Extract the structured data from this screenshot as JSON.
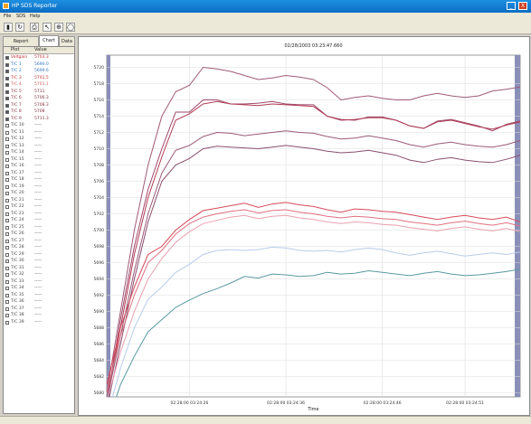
{
  "window": {
    "title": "HP SDS Reporter",
    "min_glyph": "_",
    "close_glyph": "X"
  },
  "menu": [
    "File",
    "SDS",
    "Help"
  ],
  "toolbar": [
    "save-icon",
    "refresh-icon",
    "print-icon",
    "pointer-icon",
    "zoom-in-icon",
    "zoom-reset-icon"
  ],
  "toolbar_glyphs": [
    "▮",
    "↻",
    "⎙",
    "↖",
    "⊕",
    "◯"
  ],
  "tabs": [
    "Report Properties",
    "Chart",
    "Data"
  ],
  "active_tab": 1,
  "list": {
    "headers": [
      "Plot",
      "Value"
    ],
    "rows": [
      {
        "plot": "Voltgain",
        "value": "5703.3",
        "color": "#c03030",
        "on": true
      },
      {
        "plot": "T/C 1",
        "value": "5690.0",
        "color": "#3070c0",
        "on": true
      },
      {
        "plot": "T/C 2",
        "value": "5699.6",
        "color": "#3070c0",
        "on": true
      },
      {
        "plot": "T/C 3",
        "value": "5701.5",
        "color": "#c03030",
        "on": true
      },
      {
        "plot": "T/C 4",
        "value": "5701.1",
        "color": "#d06060",
        "on": true
      },
      {
        "plot": "T/C 5",
        "value": "5711",
        "color": "#803040",
        "on": true
      },
      {
        "plot": "T/C 6",
        "value": "5706.3",
        "color": "#803040",
        "on": true
      },
      {
        "plot": "T/C 7",
        "value": "5708.3",
        "color": "#803040",
        "on": true
      },
      {
        "plot": "T/C 8",
        "value": "5708",
        "color": "#803040",
        "on": true
      },
      {
        "plot": "T/C 9",
        "value": "5711.3",
        "color": "#803040",
        "on": true
      },
      {
        "plot": "T/C 10",
        "value": "-----",
        "color": "#444",
        "on": false
      },
      {
        "plot": "T/C 11",
        "value": "-----",
        "color": "#444",
        "on": false
      },
      {
        "plot": "T/C 12",
        "value": "-----",
        "color": "#444",
        "on": false
      },
      {
        "plot": "T/C 13",
        "value": "-----",
        "color": "#444",
        "on": false
      },
      {
        "plot": "T/C 14",
        "value": "-----",
        "color": "#444",
        "on": false
      },
      {
        "plot": "T/C 15",
        "value": "-----",
        "color": "#444",
        "on": false
      },
      {
        "plot": "T/C 16",
        "value": "-----",
        "color": "#444",
        "on": false
      },
      {
        "plot": "T/C 17",
        "value": "-----",
        "color": "#444",
        "on": false
      },
      {
        "plot": "T/C 18",
        "value": "-----",
        "color": "#444",
        "on": false
      },
      {
        "plot": "T/C 19",
        "value": "-----",
        "color": "#444",
        "on": false
      },
      {
        "plot": "T/C 20",
        "value": "-----",
        "color": "#444",
        "on": false
      },
      {
        "plot": "T/C 21",
        "value": "-----",
        "color": "#444",
        "on": false
      },
      {
        "plot": "T/C 22",
        "value": "-----",
        "color": "#444",
        "on": false
      },
      {
        "plot": "T/C 23",
        "value": "-----",
        "color": "#444",
        "on": false
      },
      {
        "plot": "T/C 24",
        "value": "-----",
        "color": "#444",
        "on": false
      },
      {
        "plot": "T/C 25",
        "value": "-----",
        "color": "#444",
        "on": false
      },
      {
        "plot": "T/C 26",
        "value": "-----",
        "color": "#444",
        "on": false
      },
      {
        "plot": "T/C 27",
        "value": "-----",
        "color": "#444",
        "on": false
      },
      {
        "plot": "T/C 28",
        "value": "-----",
        "color": "#444",
        "on": false
      },
      {
        "plot": "T/C 29",
        "value": "-----",
        "color": "#444",
        "on": false
      },
      {
        "plot": "T/C 30",
        "value": "-----",
        "color": "#444",
        "on": false
      },
      {
        "plot": "T/C 31",
        "value": "-----",
        "color": "#444",
        "on": false
      },
      {
        "plot": "T/C 32",
        "value": "-----",
        "color": "#444",
        "on": false
      },
      {
        "plot": "T/C 33",
        "value": "-----",
        "color": "#444",
        "on": false
      },
      {
        "plot": "T/C 34",
        "value": "-----",
        "color": "#444",
        "on": false
      },
      {
        "plot": "T/C 35",
        "value": "-----",
        "color": "#444",
        "on": false
      },
      {
        "plot": "T/C 36",
        "value": "-----",
        "color": "#444",
        "on": false
      },
      {
        "plot": "T/C 37",
        "value": "-----",
        "color": "#444",
        "on": false
      },
      {
        "plot": "T/C 38",
        "value": "-----",
        "color": "#444",
        "on": false
      },
      {
        "plot": "T/C 39",
        "value": "-----",
        "color": "#444",
        "on": false
      }
    ]
  },
  "chart_data": {
    "type": "line",
    "title": "02/28/2003 03:23:47.660",
    "xlabel": "Time",
    "ylabel": "",
    "x": [
      0,
      1,
      2,
      3,
      4,
      5,
      6,
      7,
      8,
      9,
      10,
      11,
      12,
      13,
      14,
      15,
      16,
      17,
      18,
      19,
      20,
      21,
      22,
      23,
      24,
      25,
      26,
      27,
      28,
      29,
      30
    ],
    "xticks": [
      {
        "x": 6,
        "label": "02:28:00 03:24:26"
      },
      {
        "x": 13,
        "label": "02:28:00 03:24:36"
      },
      {
        "x": 20,
        "label": "02:28:00 03:24:46"
      },
      {
        "x": 26,
        "label": "02:28:00 03:24:51"
      }
    ],
    "yticks": [
      5720,
      5718,
      5716,
      5714,
      5712,
      5710,
      5708,
      5706,
      5704,
      5702,
      5700,
      5698,
      5696,
      5694,
      5692,
      5690,
      5688,
      5686,
      5684,
      5682,
      5680
    ],
    "ylim": [
      5679.5,
      5721.5
    ],
    "grid": true,
    "series": [
      {
        "color": "#a05a78",
        "values": [
          5680,
          5690,
          5700,
          5708,
          5714,
          5717,
          5717.8,
          5720,
          5719.8,
          5719.5,
          5719,
          5718.5,
          5718.7,
          5719,
          5718.8,
          5718.5,
          5717.5,
          5716,
          5716.3,
          5716.5,
          5716.2,
          5716,
          5716,
          5716.5,
          5716.8,
          5716.5,
          5716.3,
          5716.5,
          5717.1,
          5717.3,
          5717.6
        ]
      },
      {
        "color": "#a0466a",
        "values": [
          5679,
          5689,
          5698,
          5705,
          5710,
          5714.5,
          5714.5,
          5716,
          5716,
          5715.5,
          5715.5,
          5715.6,
          5715.8,
          5715.5,
          5715.4,
          5715.4,
          5714,
          5713.6,
          5713.5,
          5713.9,
          5713.9,
          5713.5,
          5712.8,
          5712.5,
          5713.4,
          5713.6,
          5713.2,
          5712.8,
          5712.2,
          5713,
          5713.4
        ]
      },
      {
        "color": "#b03c56",
        "values": [
          5679,
          5688,
          5697,
          5704,
          5709,
          5713.5,
          5714.3,
          5715.5,
          5715.8,
          5715.5,
          5715.4,
          5715.3,
          5715.5,
          5715.4,
          5715.3,
          5715.2,
          5714,
          5713.5,
          5713.6,
          5713.8,
          5713.8,
          5713.5,
          5712.8,
          5712.5,
          5713.3,
          5713.5,
          5713.1,
          5712.7,
          5712.4,
          5712.9,
          5713.3
        ]
      },
      {
        "color": "#9a5a78",
        "values": [
          5679,
          5687,
          5695,
          5702,
          5707,
          5709.8,
          5710.4,
          5711.5,
          5712,
          5711.9,
          5711.6,
          5711.8,
          5712,
          5712.2,
          5712,
          5711.9,
          5711.5,
          5711.2,
          5711.3,
          5711.6,
          5711.3,
          5711,
          5710.5,
          5710.2,
          5710.6,
          5710.8,
          5710.5,
          5710.3,
          5710.2,
          5710.5,
          5711
        ]
      },
      {
        "color": "#8a4e6e",
        "values": [
          5678,
          5686,
          5694,
          5701,
          5706,
          5708,
          5708.8,
          5710,
          5710.3,
          5710.2,
          5710.1,
          5710,
          5710.2,
          5710.4,
          5710.2,
          5710,
          5709.7,
          5709.5,
          5709.6,
          5709.8,
          5709.5,
          5709.2,
          5708.6,
          5708.3,
          5708.7,
          5708.9,
          5708.6,
          5708.4,
          5708.3,
          5708.7,
          5709.2
        ]
      },
      {
        "color": "#d84a5a",
        "values": [
          5681,
          5688,
          5693,
          5697,
          5698,
          5700,
          5701.3,
          5702.4,
          5702.7,
          5703,
          5703.3,
          5702.8,
          5703.2,
          5703.4,
          5703.1,
          5702.9,
          5702.5,
          5702.2,
          5702.6,
          5702.5,
          5702.3,
          5702.2,
          5701.9,
          5701.6,
          5701.3,
          5701.6,
          5701.8,
          5701.5,
          5701.3,
          5701.6,
          5701
        ]
      },
      {
        "color": "#e07080",
        "values": [
          5680,
          5687,
          5692,
          5696,
          5697.5,
          5699.5,
          5700.8,
          5701.6,
          5702,
          5702.3,
          5702.5,
          5702.1,
          5702.4,
          5702.5,
          5702.2,
          5702,
          5701.7,
          5701.5,
          5701.7,
          5701.6,
          5701.4,
          5701.3,
          5701,
          5700.8,
          5700.6,
          5700.9,
          5701.1,
          5700.8,
          5700.6,
          5700.9,
          5700.5
        ]
      },
      {
        "color": "#e8a0b0",
        "values": [
          5679,
          5685,
          5690,
          5694,
          5696.5,
          5698.5,
          5699.8,
          5700.8,
          5701.2,
          5701.6,
          5701.8,
          5701.4,
          5701.7,
          5701.8,
          5701.5,
          5701.3,
          5701,
          5700.8,
          5701,
          5700.9,
          5700.7,
          5700.6,
          5700.3,
          5700.1,
          5699.9,
          5700.2,
          5700.4,
          5700.1,
          5699.9,
          5700.2,
          5699.8
        ]
      },
      {
        "color": "#b8ccea",
        "values": [
          5677,
          5683,
          5688,
          5691.5,
          5693,
          5694.8,
          5695.8,
          5697,
          5697.5,
          5697.6,
          5697.5,
          5697.6,
          5697.9,
          5697.8,
          5697.5,
          5697.4,
          5697.5,
          5697.3,
          5697.6,
          5697.8,
          5697.6,
          5697.2,
          5696.9,
          5697.2,
          5697.4,
          5697.1,
          5696.8,
          5697,
          5697.2,
          5697,
          5697.3
        ]
      },
      {
        "color": "#5a9aa0",
        "values": [
          5676,
          5681,
          5684.5,
          5687.5,
          5689,
          5690.5,
          5691.4,
          5692.2,
          5692.8,
          5693.5,
          5694.3,
          5694.1,
          5694.6,
          5694.5,
          5694.3,
          5694.4,
          5694.8,
          5694.6,
          5694.7,
          5695,
          5694.8,
          5694.6,
          5694.4,
          5694.7,
          5694.9,
          5694.6,
          5694.4,
          5694.5,
          5694.7,
          5694.9,
          5695.2
        ]
      }
    ]
  }
}
